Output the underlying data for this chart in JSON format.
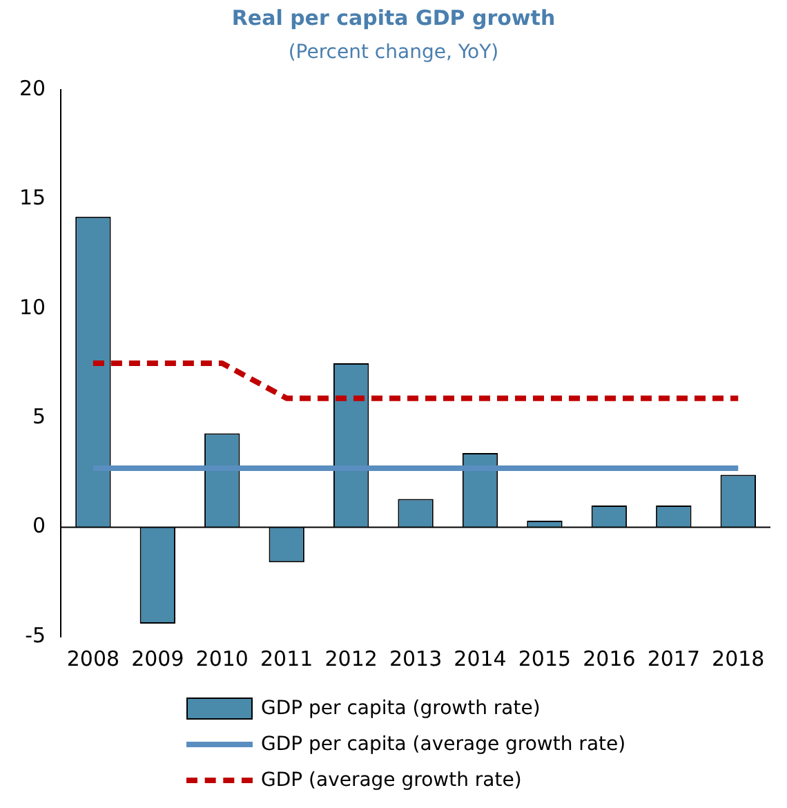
{
  "chart_data": {
    "type": "bar",
    "title": "Real per capita GDP growth",
    "subtitle": "(Percent change, YoY)",
    "categories": [
      "2008",
      "2009",
      "2010",
      "2011",
      "2012",
      "2013",
      "2014",
      "2015",
      "2016",
      "2017",
      "2018"
    ],
    "series": [
      {
        "name": "GDP per capita (growth rate)",
        "color": "#4a8aab",
        "values": [
          14.2,
          -4.4,
          4.3,
          -1.6,
          7.5,
          1.3,
          3.4,
          0.3,
          1.0,
          1.0,
          2.4
        ]
      },
      {
        "name": "GDP per capita (average growth rate)",
        "type": "line",
        "line_style": "solid",
        "color": "#5a8ec0",
        "values": [
          2.7,
          2.7,
          2.7,
          2.7,
          2.7,
          2.7,
          2.7,
          2.7,
          2.7,
          2.7,
          2.7
        ]
      },
      {
        "name": "GDP (average growth rate)",
        "type": "line",
        "line_style": "dashed",
        "color": "#c00000",
        "values": [
          7.5,
          7.5,
          7.5,
          5.9,
          5.9,
          5.9,
          5.9,
          5.9,
          5.9,
          5.9,
          5.9
        ]
      }
    ],
    "ylim": [
      -5,
      20
    ],
    "yticks": [
      -5,
      0,
      5,
      10,
      15,
      20
    ],
    "legend": "bottom",
    "marker": "none"
  }
}
